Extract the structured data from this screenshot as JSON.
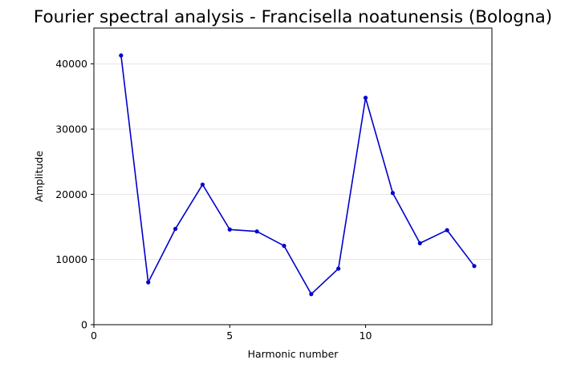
{
  "chart_data": {
    "type": "line",
    "title": "Fourier spectral analysis - Francisella noatunensis (Bologna)",
    "xlabel": "Harmonic number",
    "ylabel": "Amplitude",
    "xlim": [
      0,
      14.65
    ],
    "ylim": [
      0,
      45500
    ],
    "xticks": [
      0,
      5,
      10
    ],
    "yticks": [
      0,
      10000,
      20000,
      30000,
      40000
    ],
    "xtick_labels": [
      "0",
      "5",
      "10"
    ],
    "ytick_labels": [
      "0",
      "10000",
      "20000",
      "30000",
      "40000"
    ],
    "grid": "horizontal",
    "series": [
      {
        "color": "#0000cc",
        "marker": "dot",
        "x": [
          1,
          2,
          3,
          4,
          5,
          6,
          7,
          8,
          9,
          10,
          11,
          12,
          13,
          14
        ],
        "y": [
          41300,
          6500,
          14700,
          21500,
          14600,
          14300,
          12100,
          4700,
          8600,
          34800,
          20200,
          12500,
          14500,
          9000
        ]
      }
    ]
  }
}
